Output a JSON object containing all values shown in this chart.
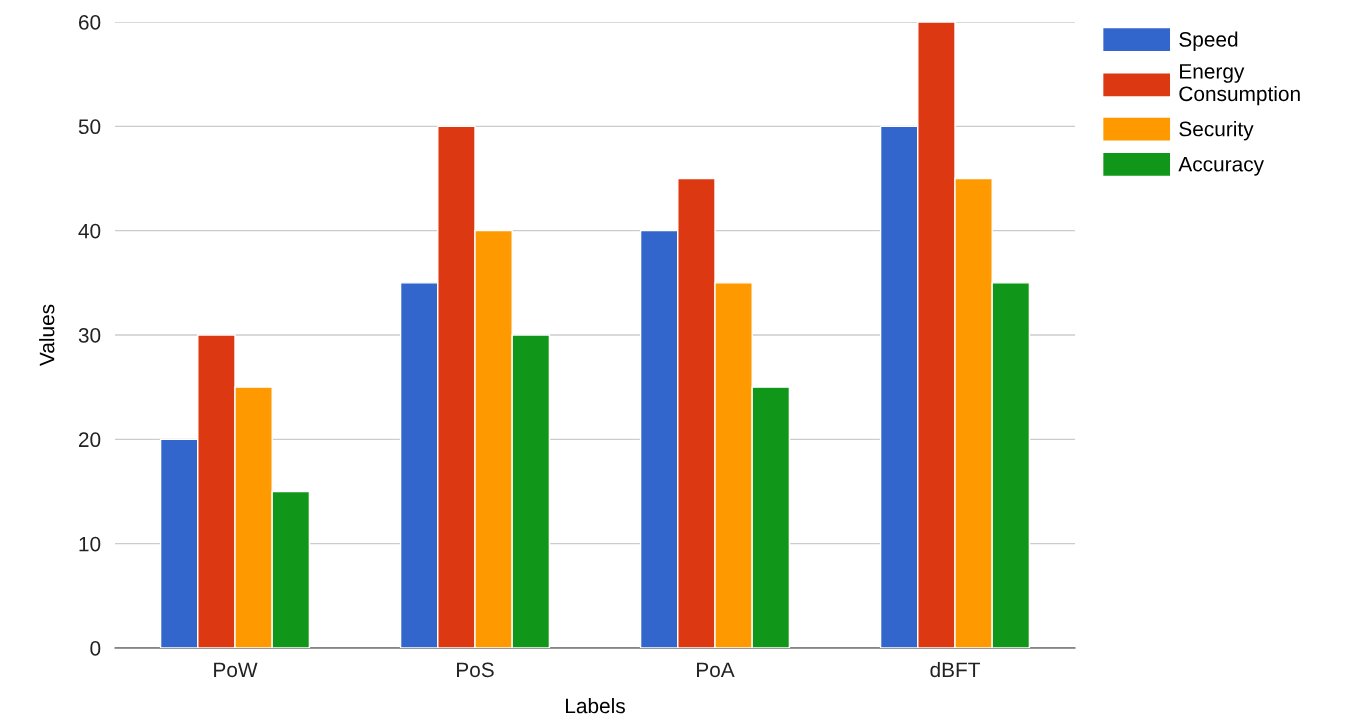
{
  "chart_data": {
    "type": "bar",
    "xlabel": "Labels",
    "ylabel": "Values",
    "categories": [
      "PoW",
      "PoS",
      "PoA",
      "dBFT"
    ],
    "series": [
      {
        "name": "Speed",
        "color": "#3366cc",
        "values": [
          20,
          35,
          40,
          50
        ]
      },
      {
        "name": "Energy Consumption",
        "color": "#dc3912",
        "values": [
          30,
          50,
          45,
          60
        ]
      },
      {
        "name": "Security",
        "color": "#ff9900",
        "values": [
          25,
          40,
          35,
          45
        ]
      },
      {
        "name": "Accuracy",
        "color": "#109618",
        "values": [
          15,
          30,
          25,
          35
        ]
      }
    ],
    "ylim": [
      0,
      60
    ],
    "yticks": [
      0,
      10,
      20,
      30,
      40,
      50,
      60
    ],
    "grid": "y",
    "legend": "top right"
  }
}
